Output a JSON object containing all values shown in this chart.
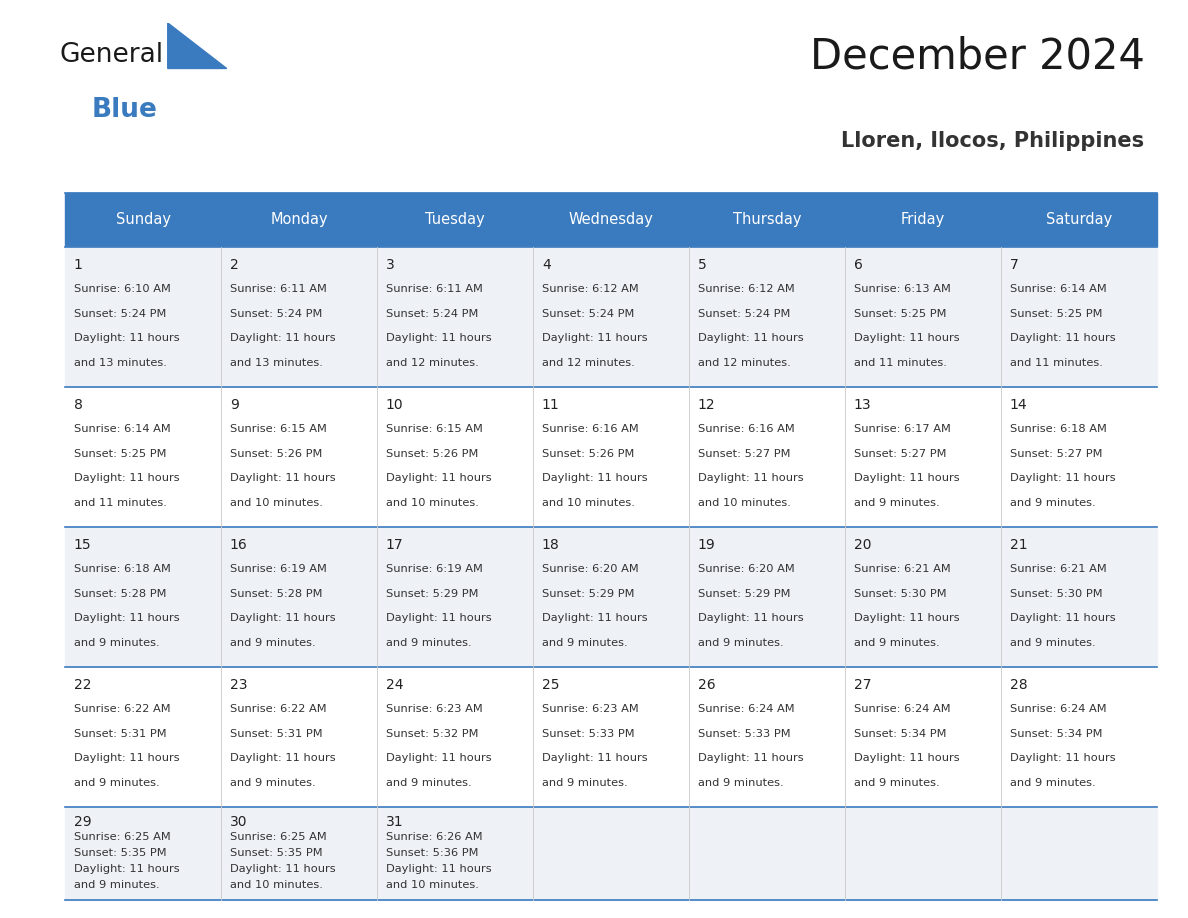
{
  "title": "December 2024",
  "subtitle": "Lloren, Ilocos, Philippines",
  "header_bg_color": "#3a7abf",
  "header_text_color": "#ffffff",
  "cell_bg_light": "#eef2f7",
  "cell_bg_white": "#ffffff",
  "row_separator_color": "#3a7abf",
  "grid_color": "#c8c8c8",
  "days_of_week": [
    "Sunday",
    "Monday",
    "Tuesday",
    "Wednesday",
    "Thursday",
    "Friday",
    "Saturday"
  ],
  "calendar": [
    [
      {
        "day": 1,
        "sunrise": "6:10 AM",
        "sunset": "5:24 PM",
        "daylight_hours": 11,
        "daylight_minutes": 13
      },
      {
        "day": 2,
        "sunrise": "6:11 AM",
        "sunset": "5:24 PM",
        "daylight_hours": 11,
        "daylight_minutes": 13
      },
      {
        "day": 3,
        "sunrise": "6:11 AM",
        "sunset": "5:24 PM",
        "daylight_hours": 11,
        "daylight_minutes": 12
      },
      {
        "day": 4,
        "sunrise": "6:12 AM",
        "sunset": "5:24 PM",
        "daylight_hours": 11,
        "daylight_minutes": 12
      },
      {
        "day": 5,
        "sunrise": "6:12 AM",
        "sunset": "5:24 PM",
        "daylight_hours": 11,
        "daylight_minutes": 12
      },
      {
        "day": 6,
        "sunrise": "6:13 AM",
        "sunset": "5:25 PM",
        "daylight_hours": 11,
        "daylight_minutes": 11
      },
      {
        "day": 7,
        "sunrise": "6:14 AM",
        "sunset": "5:25 PM",
        "daylight_hours": 11,
        "daylight_minutes": 11
      }
    ],
    [
      {
        "day": 8,
        "sunrise": "6:14 AM",
        "sunset": "5:25 PM",
        "daylight_hours": 11,
        "daylight_minutes": 11
      },
      {
        "day": 9,
        "sunrise": "6:15 AM",
        "sunset": "5:26 PM",
        "daylight_hours": 11,
        "daylight_minutes": 10
      },
      {
        "day": 10,
        "sunrise": "6:15 AM",
        "sunset": "5:26 PM",
        "daylight_hours": 11,
        "daylight_minutes": 10
      },
      {
        "day": 11,
        "sunrise": "6:16 AM",
        "sunset": "5:26 PM",
        "daylight_hours": 11,
        "daylight_minutes": 10
      },
      {
        "day": 12,
        "sunrise": "6:16 AM",
        "sunset": "5:27 PM",
        "daylight_hours": 11,
        "daylight_minutes": 10
      },
      {
        "day": 13,
        "sunrise": "6:17 AM",
        "sunset": "5:27 PM",
        "daylight_hours": 11,
        "daylight_minutes": 9
      },
      {
        "day": 14,
        "sunrise": "6:18 AM",
        "sunset": "5:27 PM",
        "daylight_hours": 11,
        "daylight_minutes": 9
      }
    ],
    [
      {
        "day": 15,
        "sunrise": "6:18 AM",
        "sunset": "5:28 PM",
        "daylight_hours": 11,
        "daylight_minutes": 9
      },
      {
        "day": 16,
        "sunrise": "6:19 AM",
        "sunset": "5:28 PM",
        "daylight_hours": 11,
        "daylight_minutes": 9
      },
      {
        "day": 17,
        "sunrise": "6:19 AM",
        "sunset": "5:29 PM",
        "daylight_hours": 11,
        "daylight_minutes": 9
      },
      {
        "day": 18,
        "sunrise": "6:20 AM",
        "sunset": "5:29 PM",
        "daylight_hours": 11,
        "daylight_minutes": 9
      },
      {
        "day": 19,
        "sunrise": "6:20 AM",
        "sunset": "5:29 PM",
        "daylight_hours": 11,
        "daylight_minutes": 9
      },
      {
        "day": 20,
        "sunrise": "6:21 AM",
        "sunset": "5:30 PM",
        "daylight_hours": 11,
        "daylight_minutes": 9
      },
      {
        "day": 21,
        "sunrise": "6:21 AM",
        "sunset": "5:30 PM",
        "daylight_hours": 11,
        "daylight_minutes": 9
      }
    ],
    [
      {
        "day": 22,
        "sunrise": "6:22 AM",
        "sunset": "5:31 PM",
        "daylight_hours": 11,
        "daylight_minutes": 9
      },
      {
        "day": 23,
        "sunrise": "6:22 AM",
        "sunset": "5:31 PM",
        "daylight_hours": 11,
        "daylight_minutes": 9
      },
      {
        "day": 24,
        "sunrise": "6:23 AM",
        "sunset": "5:32 PM",
        "daylight_hours": 11,
        "daylight_minutes": 9
      },
      {
        "day": 25,
        "sunrise": "6:23 AM",
        "sunset": "5:33 PM",
        "daylight_hours": 11,
        "daylight_minutes": 9
      },
      {
        "day": 26,
        "sunrise": "6:24 AM",
        "sunset": "5:33 PM",
        "daylight_hours": 11,
        "daylight_minutes": 9
      },
      {
        "day": 27,
        "sunrise": "6:24 AM",
        "sunset": "5:34 PM",
        "daylight_hours": 11,
        "daylight_minutes": 9
      },
      {
        "day": 28,
        "sunrise": "6:24 AM",
        "sunset": "5:34 PM",
        "daylight_hours": 11,
        "daylight_minutes": 9
      }
    ],
    [
      {
        "day": 29,
        "sunrise": "6:25 AM",
        "sunset": "5:35 PM",
        "daylight_hours": 11,
        "daylight_minutes": 9
      },
      {
        "day": 30,
        "sunrise": "6:25 AM",
        "sunset": "5:35 PM",
        "daylight_hours": 11,
        "daylight_minutes": 10
      },
      {
        "day": 31,
        "sunrise": "6:26 AM",
        "sunset": "5:36 PM",
        "daylight_hours": 11,
        "daylight_minutes": 10
      },
      null,
      null,
      null,
      null
    ]
  ],
  "logo_general_color": "#1a1a1a",
  "logo_blue_color": "#3a7abf",
  "logo_triangle_color": "#3a7abf",
  "title_color": "#1a1a1a",
  "subtitle_color": "#333333"
}
